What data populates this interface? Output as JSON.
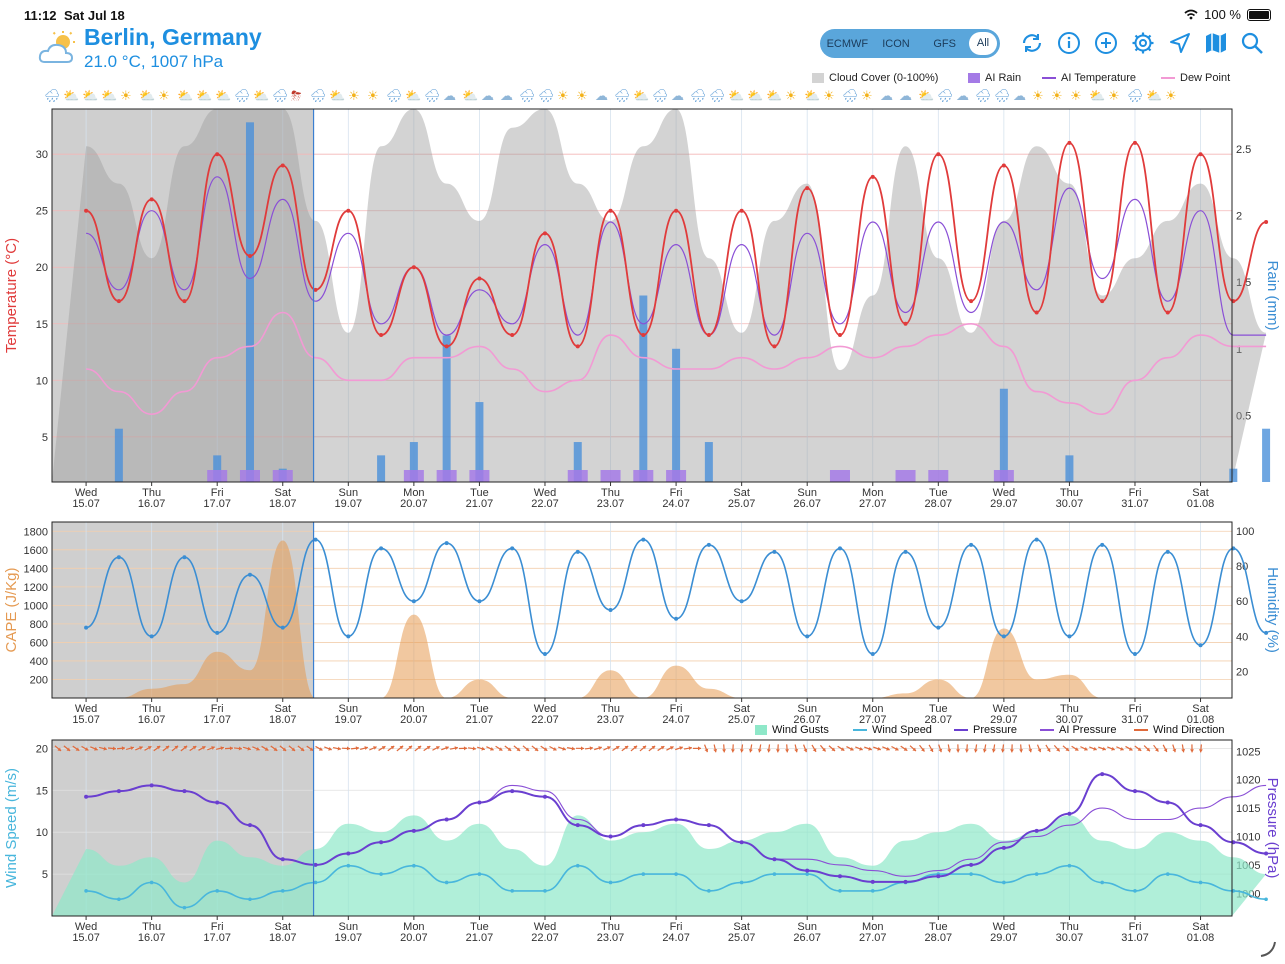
{
  "status_bar": {
    "time": "11:12",
    "date": "Sat Jul 18",
    "battery": "100 %"
  },
  "header": {
    "location": "Berlin, Germany",
    "conditions": "21.0 °C, 1007 hPa",
    "weather_icon": "partly-cloudy-icon"
  },
  "models": {
    "options": [
      "ECMWF",
      "ICON",
      "GFS",
      "All"
    ],
    "selected": "All"
  },
  "toolbar": {
    "icons": [
      "refresh-icon",
      "info-icon",
      "add-icon",
      "settings-icon",
      "location-icon",
      "map-icon",
      "search-icon"
    ]
  },
  "colors": {
    "accent": "#1e8fe0",
    "temperature": "#e03b3b",
    "dew_point": "#f29ad4",
    "ai_temperature": "#8a4fd6",
    "rain": "#4a90d9",
    "ai_rain": "#a47ae6",
    "cloud": "#d3d3d3",
    "cape": "#e59a52",
    "humidity": "#3b8ed3",
    "wind_gusts": "#8fe8c9",
    "wind_speed": "#48b6dc",
    "pressure": "#6a3fd0",
    "wind_direction": "#e06a3b"
  },
  "legend_top": [
    "Cloud Cover (0-100%)",
    "AI Rain",
    "AI Temperature",
    "Dew Point"
  ],
  "legend_bottom": [
    "Wind Gusts",
    "Wind Speed",
    "Pressure",
    "AI Pressure",
    "Wind Direction"
  ],
  "weather_icons": [
    "cloud-rain",
    "sun-cloud",
    "sun-cloud",
    "sun-cloud",
    "sun",
    "sun-cloud",
    "sun",
    "sun-cloud",
    "sun-cloud",
    "sun-cloud",
    "cloud-rain",
    "sun-cloud",
    "cloud-rain",
    "thunderstorm",
    "cloud-rain",
    "sun-cloud",
    "sun",
    "sun",
    "cloud-rain",
    "sun-cloud",
    "cloud-rain",
    "cloud",
    "sun-cloud",
    "cloud",
    "cloud",
    "cloud-rain",
    "cloud-rain",
    "sun",
    "sun",
    "cloud",
    "cloud-rain",
    "sun-cloud",
    "cloud-rain",
    "cloud",
    "cloud-rain",
    "cloud-rain",
    "sun-cloud",
    "sun-cloud",
    "sun-cloud",
    "sun",
    "sun-cloud",
    "sun",
    "cloud-rain",
    "sun",
    "cloud",
    "cloud",
    "sun-cloud",
    "cloud-rain",
    "cloud",
    "cloud-rain",
    "cloud-rain",
    "cloud",
    "sun",
    "sun",
    "sun",
    "sun-cloud",
    "sun",
    "cloud-rain",
    "sun-cloud",
    "sun"
  ],
  "x_axis": {
    "days": [
      "Wed",
      "Thu",
      "Fri",
      "Sat",
      "Sun",
      "Mon",
      "Tue",
      "Wed",
      "Thu",
      "Fri",
      "Sat",
      "Sun",
      "Mon",
      "Tue",
      "Wed",
      "Thu",
      "Fri",
      "Sat"
    ],
    "dates": [
      "15.07",
      "16.07",
      "17.07",
      "18.07",
      "19.07",
      "20.07",
      "21.07",
      "22.07",
      "23.07",
      "24.07",
      "25.07",
      "26.07",
      "27.07",
      "28.07",
      "29.07",
      "30.07",
      "31.07",
      "01.08"
    ],
    "past_until": "18.07"
  },
  "chart_data": [
    {
      "type": "line",
      "name": "temperature-rain",
      "ylabel": "Temperature (°C)",
      "y2label": "Rain (mm)",
      "yticks": [
        5,
        10,
        15,
        20,
        25,
        30
      ],
      "y2ticks": [
        "0.5",
        "1",
        "1.5",
        "2",
        "2.5"
      ],
      "ylim": [
        1,
        34
      ],
      "y2lim": [
        0,
        2.8
      ],
      "x": [
        0,
        0.5,
        1,
        1.5,
        2,
        2.5,
        3,
        3.5,
        4,
        4.5,
        5,
        5.5,
        6,
        6.5,
        7,
        7.5,
        8,
        8.5,
        9,
        9.5,
        10,
        10.5,
        11,
        11.5,
        12,
        12.5,
        13,
        13.5,
        14,
        14.5,
        15,
        15.5,
        16,
        16.5,
        17,
        17.5,
        18
      ],
      "series": [
        {
          "name": "Temperature",
          "values": [
            25,
            17,
            26,
            17,
            30,
            21,
            29,
            18,
            25,
            14,
            20,
            13,
            19,
            14,
            23,
            13,
            25,
            14,
            25,
            14,
            25,
            13,
            27,
            14,
            28,
            15,
            30,
            17,
            29,
            16,
            31,
            17,
            31,
            16,
            30,
            17,
            24
          ]
        },
        {
          "name": "AI Temperature",
          "values": [
            23,
            18,
            25,
            18,
            28,
            19,
            26,
            17,
            23,
            15,
            20,
            14,
            18,
            15,
            22,
            14,
            24,
            15,
            22,
            14,
            22,
            14,
            23,
            15,
            24,
            16,
            24,
            16,
            24,
            18,
            27,
            19,
            26,
            17,
            25,
            14,
            14
          ]
        },
        {
          "name": "Dew Point",
          "values": [
            11,
            9,
            7,
            9,
            12,
            13,
            16,
            12,
            10,
            10,
            12,
            12,
            13,
            11,
            9,
            10,
            14,
            12,
            11,
            11,
            12,
            11,
            12,
            13,
            12,
            13,
            14,
            15,
            13,
            9,
            8,
            7,
            10,
            12,
            14,
            13,
            13
          ]
        },
        {
          "name": "Cloud Cover (0-100%)",
          "values": [
            90,
            80,
            60,
            90,
            100,
            100,
            100,
            70,
            40,
            90,
            100,
            80,
            70,
            95,
            100,
            80,
            70,
            90,
            100,
            60,
            40,
            70,
            80,
            30,
            50,
            90,
            60,
            40,
            70,
            90,
            80,
            50,
            60,
            70,
            80,
            60,
            40
          ]
        },
        {
          "name": "Rain",
          "values": [
            0,
            0.4,
            0,
            0,
            0.2,
            2.7,
            0.1,
            0,
            0,
            0.2,
            0.3,
            1.1,
            0.6,
            0,
            0,
            0.3,
            0,
            1.4,
            1,
            0.3,
            0,
            0,
            0,
            0,
            0,
            0,
            0,
            0,
            0.7,
            0,
            0.2,
            0,
            0,
            0,
            0,
            0.1,
            0.4
          ]
        },
        {
          "name": "AI Rain",
          "values": [
            0,
            0,
            0,
            0,
            0.1,
            0.1,
            0.1,
            0,
            0,
            0,
            0.1,
            0.1,
            0.1,
            0,
            0,
            0.1,
            0.1,
            0.1,
            0.1,
            0,
            0,
            0,
            0,
            0.1,
            0,
            0.1,
            0.1,
            0,
            0.1,
            0,
            0,
            0,
            0,
            0,
            0,
            0,
            0
          ]
        }
      ]
    },
    {
      "type": "line",
      "name": "cape-humidity",
      "ylabel": "CAPE (J/Kg)",
      "y2label": "Humidity (%)",
      "yticks": [
        200,
        400,
        600,
        800,
        1000,
        1200,
        1400,
        1600,
        1800
      ],
      "y2ticks": [
        20,
        40,
        60,
        80,
        100
      ],
      "ylim": [
        0,
        1900
      ],
      "y2lim": [
        5,
        105
      ],
      "x": [
        0,
        0.5,
        1,
        1.5,
        2,
        2.5,
        3,
        3.5,
        4,
        4.5,
        5,
        5.5,
        6,
        6.5,
        7,
        7.5,
        8,
        8.5,
        9,
        9.5,
        10,
        10.5,
        11,
        11.5,
        12,
        12.5,
        13,
        13.5,
        14,
        14.5,
        15,
        15.5,
        16,
        16.5,
        17,
        17.5,
        18
      ],
      "series": [
        {
          "name": "Humidity",
          "values": [
            45,
            85,
            40,
            85,
            42,
            75,
            45,
            95,
            40,
            90,
            60,
            93,
            60,
            90,
            30,
            88,
            55,
            95,
            50,
            92,
            60,
            88,
            40,
            90,
            30,
            88,
            45,
            92,
            40,
            95,
            40,
            92,
            30,
            88,
            35,
            90,
            42
          ]
        },
        {
          "name": "CAPE",
          "values": [
            0,
            0,
            100,
            150,
            500,
            300,
            1700,
            0,
            0,
            0,
            900,
            0,
            200,
            0,
            0,
            0,
            300,
            0,
            350,
            100,
            0,
            0,
            0,
            0,
            0,
            50,
            200,
            0,
            750,
            200,
            250,
            0,
            0,
            0,
            0,
            0,
            0
          ]
        }
      ]
    },
    {
      "type": "line",
      "name": "wind-pressure",
      "ylabel": "Wind Speed (m/s)",
      "y2label": "Pressure (hPa)",
      "yticks": [
        5,
        10,
        15,
        20
      ],
      "y2ticks": [
        1000,
        1005,
        1010,
        1015,
        1020,
        1025
      ],
      "ylim": [
        0,
        21
      ],
      "y2lim": [
        996,
        1027
      ],
      "x": [
        0,
        0.5,
        1,
        1.5,
        2,
        2.5,
        3,
        3.5,
        4,
        4.5,
        5,
        5.5,
        6,
        6.5,
        7,
        7.5,
        8,
        8.5,
        9,
        9.5,
        10,
        10.5,
        11,
        11.5,
        12,
        12.5,
        13,
        13.5,
        14,
        14.5,
        15,
        15.5,
        16,
        16.5,
        17,
        17.5,
        18
      ],
      "series": [
        {
          "name": "Wind Gusts",
          "values": [
            8,
            6,
            7,
            4,
            9,
            7,
            6,
            8,
            11,
            10,
            12,
            9,
            11,
            8,
            6,
            12,
            9,
            10,
            11,
            8,
            9,
            10,
            11,
            7,
            6,
            9,
            10,
            11,
            9,
            10,
            12,
            9,
            8,
            10,
            9,
            7,
            5
          ]
        },
        {
          "name": "Wind Speed",
          "values": [
            3,
            2,
            4,
            1,
            3,
            2,
            3,
            4,
            6,
            5,
            6,
            4,
            5,
            3,
            3,
            6,
            4,
            5,
            5,
            3,
            4,
            5,
            5,
            3,
            3,
            4,
            5,
            5,
            4,
            5,
            6,
            4,
            3,
            5,
            4,
            3,
            2
          ]
        },
        {
          "name": "Pressure",
          "values": [
            1017,
            1018,
            1019,
            1018,
            1016,
            1012,
            1006,
            1005,
            1007,
            1009,
            1011,
            1013,
            1016,
            1018,
            1017,
            1012,
            1010,
            1012,
            1013,
            1012,
            1009,
            1006,
            1004,
            1003,
            1002,
            1002,
            1003,
            1005,
            1008,
            1011,
            1014,
            1021,
            1018,
            1016,
            1012,
            1009,
            1007
          ]
        },
        {
          "name": "AI Pressure",
          "values": [
            1017,
            1018,
            1019,
            1018,
            1016,
            1012,
            1006,
            1005,
            1007,
            1009,
            1011,
            1013,
            1016,
            1019,
            1018,
            1013,
            1010,
            1012,
            1013,
            1012,
            1009,
            1006,
            1006,
            1005,
            1004,
            1003,
            1004,
            1006,
            1009,
            1010,
            1012,
            1015,
            1013,
            1013,
            1015,
            1017,
            1019
          ]
        }
      ]
    }
  ]
}
